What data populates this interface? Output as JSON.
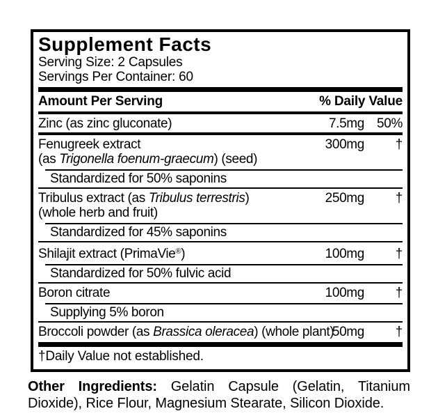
{
  "panel": {
    "title": "Supplement Facts",
    "serving_size": "Serving Size: 2 Capsules",
    "servings_per_container": "Servings Per Container: 60",
    "header": {
      "amount_label": "Amount Per Serving",
      "daily_value_label": "% Daily Value"
    },
    "footnote": "†Daily Value not established."
  },
  "rows": [
    {
      "name": "Zinc (as zinc gluconate)",
      "amount": "7.5mg",
      "dv": "50%"
    },
    {
      "name": "Fenugreek extract",
      "line2_pre": "(as ",
      "line2_italic": "Trigonella foenum-graecum",
      "line2_post": ") (seed)",
      "amount": "300mg",
      "dv": "†",
      "sub": "Standardized for 50% saponins"
    },
    {
      "name_pre": "Tribulus extract (as ",
      "name_italic": "Tribulus terrestris",
      "name_post": ")",
      "line2": "(whole herb and fruit)",
      "amount": "250mg",
      "dv": "†",
      "sub": "Standardized for 45% saponins"
    },
    {
      "name_pre": "Shilajit extract (PrimaVie",
      "name_sup": "®",
      "name_post": ")",
      "amount": "100mg",
      "dv": "†",
      "sub": "Standardized for 50% fulvic acid"
    },
    {
      "name": "Boron citrate",
      "amount": "100mg",
      "dv": "†",
      "sub": "Supplying 5% boron"
    },
    {
      "name_pre": "Broccoli powder (as ",
      "name_italic": "Brassica oleracea",
      "name_post": ") (whole plant)",
      "amount": "50mg",
      "dv": "†"
    }
  ],
  "other_ingredients": {
    "label": "Other Ingredients:",
    "text": "Gelatin Capsule (Gelatin, Titanium Dioxide), Rice Flour, Magnesium Stearate, Silicon Dioxide."
  },
  "colors": {
    "ink": "#000000",
    "background": "#ffffff"
  }
}
